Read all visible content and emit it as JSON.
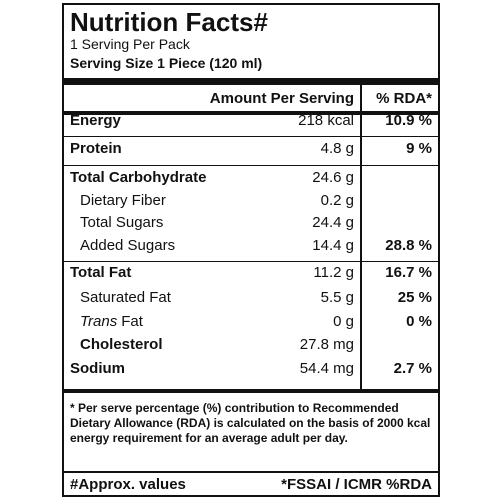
{
  "header": {
    "title": "Nutrition Facts#",
    "servings": "1 Serving Per Pack",
    "serving_size": "Serving Size 1 Piece (120 ml)"
  },
  "table": {
    "columns": [
      "Amount Per Serving",
      "% RDA*"
    ],
    "rows": [
      {
        "name": "Energy",
        "amount": "218 kcal",
        "rda": "10.9 %"
      },
      {
        "name": "Protein",
        "amount": "4.8 g",
        "rda": "9 %"
      },
      {
        "name": "Total Carbohydrate",
        "amount": "24.6 g"
      },
      {
        "name": "Dietary Fiber",
        "amount": "0.2 g"
      },
      {
        "name": "Total Sugars",
        "amount": "24.4 g"
      },
      {
        "name": "Added Sugars",
        "amount": "14.4 g",
        "rda": "28.8 %"
      },
      {
        "name": "Total Fat",
        "amount": "11.2 g",
        "rda": "16.7 %"
      },
      {
        "name": "Saturated Fat",
        "amount": "5.5 g",
        "rda": "25 %"
      },
      {
        "name_italic": "Trans",
        "name": "Fat",
        "amount": "0 g",
        "rda": "0 %"
      },
      {
        "name": "Cholesterol",
        "amount": "27.8 mg"
      },
      {
        "name": "Sodium",
        "amount": "54.4 mg",
        "rda": "2.7 %"
      }
    ]
  },
  "footnote": "* Per serve percentage (%) contribution to Recommended Dietary Allowance (RDA) is calculated on the basis of 2000 kcal energy requirement for an average adult per day.",
  "footer": {
    "left": "#Approx. values",
    "right": "*FSSAI / ICMR %RDA"
  }
}
